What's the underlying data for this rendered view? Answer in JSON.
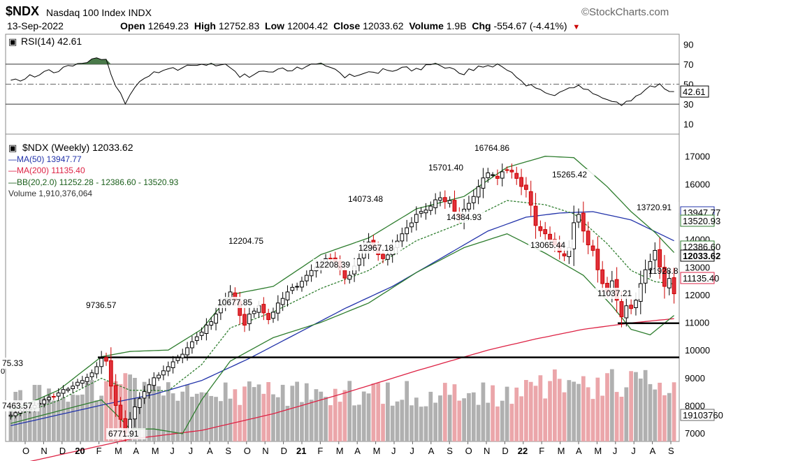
{
  "header": {
    "ticker": "$NDX",
    "index_name": "Nasdaq 100 Index  INDX",
    "credit": "©StockCharts.com",
    "date": "13-Sep-2022",
    "open_label": "Open",
    "open_value": "12649.23",
    "high_label": "High",
    "high_value": "12752.83",
    "low_label": "Low",
    "low_value": "12004.42",
    "close_label": "Close",
    "close_value": "12033.62",
    "volume_label": "Volume",
    "volume_value": "1.9B",
    "chg_label": "Chg",
    "chg_value": "-554.67 (-4.41%)",
    "chg_arrow": "▼"
  },
  "rsi_panel": {
    "legend": "RSI(14) 42.61",
    "current_label": "42.61",
    "ticks": [
      "90",
      "70",
      "50",
      "30",
      "10"
    ]
  },
  "price_panel": {
    "legend_title": "$NDX (Weekly) 12033.62",
    "legend_ma50": "—MA(50) 13947.77",
    "legend_ma200": "—MA(200) 11135.40",
    "legend_bb": "—BB(20,2.0) 11252.28 - 12386.60 - 13520.93",
    "legend_volume": "Volume 1,910,376,064",
    "y_ticks": [
      "17000",
      "16000",
      "15000",
      "14000",
      "13000",
      "12000",
      "11000",
      "10000",
      "9000",
      "8000",
      "7000"
    ],
    "right_labels": [
      "13947.77",
      "13520.93",
      "12386.60",
      "12033.62",
      "11928.8",
      "11135.40",
      "19103760"
    ],
    "annotations": [
      "75.33",
      "7463.57",
      "6771.91",
      "9736.57",
      "10677.85",
      "12204.75",
      "12208.39",
      "14073.48",
      "12967.18",
      "15701.40",
      "14384.93",
      "16764.86",
      "15265.42",
      "13065.44",
      "13720.91",
      "11037.21"
    ],
    "x_labels": [
      "O",
      "N",
      "D",
      "20",
      "F",
      "M",
      "A",
      "M",
      "J",
      "J",
      "A",
      "S",
      "O",
      "N",
      "D",
      "21",
      "F",
      "M",
      "A",
      "M",
      "J",
      "J",
      "A",
      "S",
      "O",
      "N",
      "D",
      "22",
      "F",
      "M",
      "A",
      "M",
      "J",
      "J",
      "A",
      "S"
    ]
  },
  "colors": {
    "up": "#000000",
    "down": "#cc0000",
    "downfill": "#e0303a",
    "ma50": "#2233aa",
    "ma200": "#dd2244",
    "bb": "#2e7d2e",
    "rsi_fill": "#4a7a4a",
    "vol_up": "#b0b0b0",
    "vol_down": "#eba6aa"
  },
  "chart_data": {
    "type": "candlestick",
    "title": "$NDX (Weekly) 12033.62",
    "period": "weekly",
    "x_range": [
      "2019-10",
      "2022-09"
    ],
    "ylim": [
      6700,
      17800
    ],
    "anchors": [
      {
        "i": 0,
        "close": 7650
      },
      {
        "i": 5,
        "close": 8000
      },
      {
        "i": 10,
        "close": 8450
      },
      {
        "i": 15,
        "close": 8900
      },
      {
        "i": 18,
        "close": 9400
      },
      {
        "i": 19,
        "close": 9700
      },
      {
        "i": 20,
        "close": 9600
      },
      {
        "i": 21,
        "close": 8700
      },
      {
        "i": 22,
        "close": 8000
      },
      {
        "i": 23,
        "close": 7500
      },
      {
        "i": 24,
        "close": 7000
      },
      {
        "i": 25,
        "close": 7500
      },
      {
        "i": 26,
        "close": 7950
      },
      {
        "i": 28,
        "close": 8500
      },
      {
        "i": 30,
        "close": 9000
      },
      {
        "i": 33,
        "close": 9400
      },
      {
        "i": 36,
        "close": 9850
      },
      {
        "i": 38,
        "close": 10300
      },
      {
        "i": 40,
        "close": 10650
      },
      {
        "i": 43,
        "close": 11300
      },
      {
        "i": 46,
        "close": 12100
      },
      {
        "i": 47,
        "close": 11800
      },
      {
        "i": 48,
        "close": 11250
      },
      {
        "i": 49,
        "close": 10900
      },
      {
        "i": 50,
        "close": 11300
      },
      {
        "i": 52,
        "close": 11600
      },
      {
        "i": 54,
        "close": 11100
      },
      {
        "i": 56,
        "close": 11700
      },
      {
        "i": 58,
        "close": 12100
      },
      {
        "i": 60,
        "close": 12300
      },
      {
        "i": 62,
        "close": 12700
      },
      {
        "i": 64,
        "close": 13000
      },
      {
        "i": 66,
        "close": 13300
      },
      {
        "i": 68,
        "close": 13200
      },
      {
        "i": 70,
        "close": 12600
      },
      {
        "i": 71,
        "close": 12700
      },
      {
        "i": 73,
        "close": 13300
      },
      {
        "i": 75,
        "close": 13900
      },
      {
        "i": 76,
        "close": 13700
      },
      {
        "i": 78,
        "close": 13300
      },
      {
        "i": 80,
        "close": 13700
      },
      {
        "i": 82,
        "close": 14200
      },
      {
        "i": 85,
        "close": 14900
      },
      {
        "i": 88,
        "close": 15200
      },
      {
        "i": 90,
        "close": 15500
      },
      {
        "i": 92,
        "close": 15400
      },
      {
        "i": 94,
        "close": 14800
      },
      {
        "i": 96,
        "close": 15300
      },
      {
        "i": 98,
        "close": 15900
      },
      {
        "i": 100,
        "close": 16400
      },
      {
        "i": 102,
        "close": 16200
      },
      {
        "i": 104,
        "close": 16500
      },
      {
        "i": 106,
        "close": 16200
      },
      {
        "i": 108,
        "close": 15800
      },
      {
        "i": 110,
        "close": 14500
      },
      {
        "i": 112,
        "close": 14200
      },
      {
        "i": 114,
        "close": 13800
      },
      {
        "i": 116,
        "close": 13400
      },
      {
        "i": 117,
        "close": 13700
      },
      {
        "i": 118,
        "close": 14600
      },
      {
        "i": 119,
        "close": 14900
      },
      {
        "i": 120,
        "close": 14300
      },
      {
        "i": 121,
        "close": 13800
      },
      {
        "i": 122,
        "close": 13600
      },
      {
        "i": 123,
        "close": 12900
      },
      {
        "i": 124,
        "close": 12400
      },
      {
        "i": 125,
        "close": 12100
      },
      {
        "i": 126,
        "close": 12500
      },
      {
        "i": 127,
        "close": 11800
      },
      {
        "i": 128,
        "close": 11200
      },
      {
        "i": 129,
        "close": 11600
      },
      {
        "i": 130,
        "close": 11500
      },
      {
        "i": 131,
        "close": 11800
      },
      {
        "i": 132,
        "close": 12400
      },
      {
        "i": 133,
        "close": 12900
      },
      {
        "i": 134,
        "close": 13200
      },
      {
        "i": 135,
        "close": 13600
      },
      {
        "i": 136,
        "close": 13000
      },
      {
        "i": 137,
        "close": 12300
      },
      {
        "i": 138,
        "close": 12587
      },
      {
        "i": 139,
        "close": 12034
      }
    ],
    "ma50": [
      {
        "i": 0,
        "v": 7270
      },
      {
        "i": 20,
        "v": 8050
      },
      {
        "i": 30,
        "v": 8400
      },
      {
        "i": 40,
        "v": 8900
      },
      {
        "i": 50,
        "v": 9700
      },
      {
        "i": 60,
        "v": 10600
      },
      {
        "i": 70,
        "v": 11500
      },
      {
        "i": 80,
        "v": 12300
      },
      {
        "i": 90,
        "v": 13300
      },
      {
        "i": 100,
        "v": 14300
      },
      {
        "i": 108,
        "v": 14800
      },
      {
        "i": 115,
        "v": 14950
      },
      {
        "i": 122,
        "v": 15000
      },
      {
        "i": 130,
        "v": 14700
      },
      {
        "i": 139,
        "v": 13948
      }
    ],
    "ma200": [
      {
        "i": 25,
        "v": 6780
      },
      {
        "i": 40,
        "v": 7100
      },
      {
        "i": 55,
        "v": 7700
      },
      {
        "i": 70,
        "v": 8450
      },
      {
        "i": 85,
        "v": 9250
      },
      {
        "i": 100,
        "v": 10000
      },
      {
        "i": 110,
        "v": 10400
      },
      {
        "i": 120,
        "v": 10750
      },
      {
        "i": 130,
        "v": 10980
      },
      {
        "i": 139,
        "v": 11135
      }
    ],
    "bb_upper": [
      {
        "i": 0,
        "v": 7800
      },
      {
        "i": 10,
        "v": 8550
      },
      {
        "i": 19,
        "v": 9760
      },
      {
        "i": 25,
        "v": 9950
      },
      {
        "i": 33,
        "v": 10000
      },
      {
        "i": 40,
        "v": 10750
      },
      {
        "i": 46,
        "v": 12000
      },
      {
        "i": 55,
        "v": 12300
      },
      {
        "i": 65,
        "v": 13450
      },
      {
        "i": 75,
        "v": 14050
      },
      {
        "i": 85,
        "v": 15100
      },
      {
        "i": 95,
        "v": 15550
      },
      {
        "i": 104,
        "v": 16600
      },
      {
        "i": 112,
        "v": 17000
      },
      {
        "i": 118,
        "v": 16950
      },
      {
        "i": 125,
        "v": 15900
      },
      {
        "i": 130,
        "v": 15000
      },
      {
        "i": 135,
        "v": 14250
      },
      {
        "i": 139,
        "v": 13521
      }
    ],
    "bb_lower": [
      {
        "i": 0,
        "v": 7350
      },
      {
        "i": 10,
        "v": 7800
      },
      {
        "i": 19,
        "v": 8200
      },
      {
        "i": 22,
        "v": 7700
      },
      {
        "i": 25,
        "v": 7150
      },
      {
        "i": 30,
        "v": 7150
      },
      {
        "i": 36,
        "v": 6980
      },
      {
        "i": 40,
        "v": 8200
      },
      {
        "i": 46,
        "v": 9600
      },
      {
        "i": 55,
        "v": 10450
      },
      {
        "i": 65,
        "v": 11000
      },
      {
        "i": 75,
        "v": 11700
      },
      {
        "i": 85,
        "v": 12800
      },
      {
        "i": 95,
        "v": 13700
      },
      {
        "i": 104,
        "v": 14200
      },
      {
        "i": 112,
        "v": 13500
      },
      {
        "i": 120,
        "v": 12700
      },
      {
        "i": 126,
        "v": 11600
      },
      {
        "i": 130,
        "v": 10750
      },
      {
        "i": 134,
        "v": 10550
      },
      {
        "i": 139,
        "v": 11252
      }
    ],
    "rsi": [
      {
        "i": 0,
        "v": 53
      },
      {
        "i": 5,
        "v": 59
      },
      {
        "i": 10,
        "v": 65
      },
      {
        "i": 15,
        "v": 72
      },
      {
        "i": 18,
        "v": 76
      },
      {
        "i": 20,
        "v": 74
      },
      {
        "i": 22,
        "v": 48
      },
      {
        "i": 24,
        "v": 32
      },
      {
        "i": 26,
        "v": 48
      },
      {
        "i": 30,
        "v": 62
      },
      {
        "i": 35,
        "v": 66
      },
      {
        "i": 40,
        "v": 70
      },
      {
        "i": 45,
        "v": 71
      },
      {
        "i": 48,
        "v": 58
      },
      {
        "i": 50,
        "v": 58
      },
      {
        "i": 55,
        "v": 64
      },
      {
        "i": 60,
        "v": 66
      },
      {
        "i": 65,
        "v": 70
      },
      {
        "i": 70,
        "v": 58
      },
      {
        "i": 75,
        "v": 62
      },
      {
        "i": 80,
        "v": 64
      },
      {
        "i": 85,
        "v": 66
      },
      {
        "i": 90,
        "v": 70
      },
      {
        "i": 94,
        "v": 60
      },
      {
        "i": 98,
        "v": 66
      },
      {
        "i": 100,
        "v": 71
      },
      {
        "i": 104,
        "v": 65
      },
      {
        "i": 108,
        "v": 50
      },
      {
        "i": 112,
        "v": 41
      },
      {
        "i": 115,
        "v": 40
      },
      {
        "i": 118,
        "v": 48
      },
      {
        "i": 121,
        "v": 44
      },
      {
        "i": 124,
        "v": 36
      },
      {
        "i": 127,
        "v": 31
      },
      {
        "i": 128,
        "v": 28
      },
      {
        "i": 130,
        "v": 35
      },
      {
        "i": 132,
        "v": 42
      },
      {
        "i": 134,
        "v": 48
      },
      {
        "i": 136,
        "v": 50
      },
      {
        "i": 138,
        "v": 45
      },
      {
        "i": 139,
        "v": 42.61
      }
    ],
    "rsi_ylim": [
      0,
      100
    ],
    "support_level": 9736.57,
    "support_level_2": 10970,
    "volume_max_billion": 4.1
  }
}
